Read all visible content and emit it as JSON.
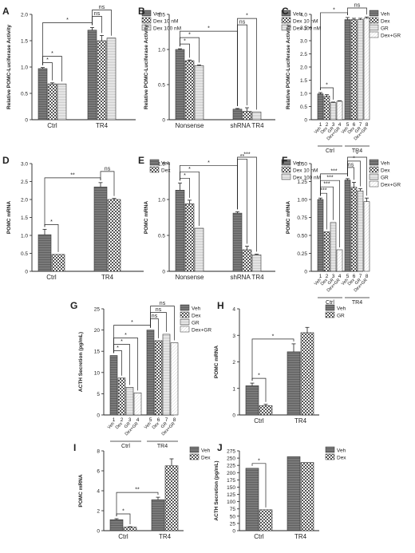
{
  "figure": {
    "title": ""
  },
  "chart_data": [
    {
      "panel": "A",
      "type": "bar",
      "ylabel": "Relative POMC-Luciferase Activity",
      "ylim": [
        0,
        2.0
      ],
      "yticks": [
        0,
        0.5,
        1.0,
        1.5,
        2.0
      ],
      "groups": [
        "Ctrl",
        "TR4"
      ],
      "legend": [
        "Veh",
        "Dex 10 nM",
        "Dex 100 nM"
      ],
      "values": [
        [
          0.97,
          0.68,
          0.68
        ],
        [
          1.7,
          1.5,
          1.55
        ]
      ],
      "errors": [
        [
          0.02,
          0.02,
          0.0
        ],
        [
          0.05,
          0.1,
          0.0
        ]
      ],
      "annotations": [
        {
          "a": [
            0,
            0
          ],
          "b": [
            0,
            1
          ],
          "text": "*"
        },
        {
          "a": [
            0,
            0
          ],
          "b": [
            0,
            2
          ],
          "text": "*"
        },
        {
          "a": [
            0,
            0
          ],
          "b": [
            1,
            0
          ],
          "text": "*"
        },
        {
          "a": [
            1,
            0
          ],
          "b": [
            1,
            1
          ],
          "text": "ns"
        },
        {
          "a": [
            1,
            0
          ],
          "b": [
            1,
            2
          ],
          "text": "ns"
        }
      ]
    },
    {
      "panel": "B",
      "type": "bar",
      "ylabel": "Relative POMC-Luciferase Activity",
      "ylim": [
        0,
        1.5
      ],
      "yticks": [
        0,
        0.5,
        1.0,
        1.5
      ],
      "groups": [
        "Nonsense",
        "shRNA TR4"
      ],
      "legend": [
        "Veh",
        "Dex 10 nM",
        "Dex 100 nM"
      ],
      "values": [
        [
          1.0,
          0.84,
          0.77
        ],
        [
          0.15,
          0.12,
          0.11
        ]
      ],
      "errors": [
        [
          0.01,
          0.01,
          0.01
        ],
        [
          0.01,
          0.05,
          0.0
        ]
      ],
      "annotations": [
        {
          "a": [
            0,
            0
          ],
          "b": [
            0,
            1
          ],
          "text": "*"
        },
        {
          "a": [
            0,
            0
          ],
          "b": [
            0,
            2
          ],
          "text": "*"
        },
        {
          "a": [
            0,
            0
          ],
          "b": [
            1,
            0
          ],
          "text": "*"
        },
        {
          "a": [
            1,
            0
          ],
          "b": [
            1,
            1
          ],
          "text": "ns"
        },
        {
          "a": [
            1,
            0
          ],
          "b": [
            1,
            2
          ],
          "text": "*"
        }
      ]
    },
    {
      "panel": "C",
      "type": "bar",
      "ylabel": "Relative POMC-Luciferase Activity",
      "ylim": [
        0,
        4.0
      ],
      "yticks": [
        0,
        0.5,
        1.0,
        1.5,
        2.0,
        2.5,
        3.0,
        3.5,
        4.0
      ],
      "groups": [
        "Ctrl",
        "TR4"
      ],
      "legend": [
        "Veh",
        "Dex",
        "GR",
        "Dex+GR"
      ],
      "bar_numbers": [
        [
          "1",
          "2",
          "3",
          "4"
        ],
        [
          "5",
          "6",
          "7",
          "8"
        ]
      ],
      "bar_labels": [
        "Veh",
        "Dex",
        "GR",
        "Dex+GR"
      ],
      "values": [
        [
          0.98,
          0.9,
          0.65,
          0.7
        ],
        [
          3.8,
          3.8,
          3.8,
          3.85
        ]
      ],
      "errors": [
        [
          0.05,
          0.05,
          0.02,
          0.02
        ],
        [
          0.08,
          0.05,
          0.05,
          0.05
        ]
      ],
      "annotations": [
        {
          "a": [
            0,
            0
          ],
          "b": [
            0,
            2
          ],
          "text": "*"
        },
        {
          "a": [
            0,
            0
          ],
          "b": [
            1,
            0
          ],
          "text": "*"
        },
        {
          "a": [
            1,
            0
          ],
          "b": [
            1,
            3
          ],
          "text": "ns"
        }
      ]
    },
    {
      "panel": "D",
      "type": "bar",
      "ylabel": "POMC mRNA",
      "ylim": [
        0,
        3.0
      ],
      "yticks": [
        0,
        0.5,
        1.0,
        1.5,
        2.0,
        2.5,
        3.0
      ],
      "groups": [
        "Ctrl",
        "TR4"
      ],
      "legend": [
        "Veh",
        "Dex"
      ],
      "values": [
        [
          1.02,
          0.47
        ],
        [
          2.35,
          2.0
        ]
      ],
      "errors": [
        [
          0.15,
          0.0
        ],
        [
          0.12,
          0.03
        ]
      ],
      "annotations": [
        {
          "a": [
            0,
            0
          ],
          "b": [
            0,
            1
          ],
          "text": "*"
        },
        {
          "a": [
            0,
            0
          ],
          "b": [
            1,
            0
          ],
          "text": "**"
        },
        {
          "a": [
            1,
            0
          ],
          "b": [
            1,
            1
          ],
          "text": "ns"
        }
      ]
    },
    {
      "panel": "E",
      "type": "bar",
      "ylabel": "POMC mRNA",
      "ylim": [
        0,
        1.5
      ],
      "yticks": [
        0,
        0.5,
        1.0,
        1.5
      ],
      "groups": [
        "Nonsense",
        "shRNA TR4"
      ],
      "legend": [
        "Veh",
        "Dex 10 nM",
        "Dex 100 nM"
      ],
      "values": [
        [
          1.13,
          0.94,
          0.6
        ],
        [
          0.81,
          0.3,
          0.23
        ]
      ],
      "errors": [
        [
          0.1,
          0.05,
          0.0
        ],
        [
          0.02,
          0.05,
          0.01
        ]
      ],
      "annotations": [
        {
          "a": [
            0,
            0
          ],
          "b": [
            0,
            1
          ],
          "text": "*"
        },
        {
          "a": [
            0,
            0
          ],
          "b": [
            0,
            2
          ],
          "text": "*"
        },
        {
          "a": [
            0,
            0
          ],
          "b": [
            1,
            0
          ],
          "text": "*"
        },
        {
          "a": [
            1,
            0
          ],
          "b": [
            1,
            1
          ],
          "text": "**"
        },
        {
          "a": [
            1,
            0
          ],
          "b": [
            1,
            2
          ],
          "text": "***"
        }
      ]
    },
    {
      "panel": "F",
      "type": "bar",
      "ylabel": "POMC mRNA",
      "ylim": [
        0,
        1.5
      ],
      "yticks": [
        0,
        0.25,
        0.5,
        0.75,
        1.0,
        1.25,
        1.5
      ],
      "groups": [
        "Ctrl",
        "TR4"
      ],
      "legend": [
        "Veh",
        "Dex",
        "GR",
        "Dex+GR"
      ],
      "bar_numbers": [
        [
          "1",
          "2",
          "3",
          "4"
        ],
        [
          "5",
          "6",
          "7",
          "8"
        ]
      ],
      "bar_labels": [
        "Veh",
        "Dex",
        "GR",
        "Dex+GR"
      ],
      "values": [
        [
          1.0,
          0.55,
          0.68,
          0.3
        ],
        [
          1.27,
          1.17,
          1.12,
          0.97
        ]
      ],
      "errors": [
        [
          0.02,
          0.0,
          0.0,
          0.0
        ],
        [
          0.02,
          0.07,
          0.03,
          0.05
        ]
      ],
      "annotations": [
        {
          "a": [
            0,
            0
          ],
          "b": [
            0,
            1
          ],
          "text": "***"
        },
        {
          "a": [
            0,
            0
          ],
          "b": [
            0,
            2
          ],
          "text": "***"
        },
        {
          "a": [
            0,
            0
          ],
          "b": [
            0,
            3
          ],
          "text": "***"
        },
        {
          "a": [
            0,
            0
          ],
          "b": [
            1,
            0
          ],
          "text": "***"
        },
        {
          "a": [
            1,
            0
          ],
          "b": [
            1,
            1
          ],
          "text": "ns"
        },
        {
          "a": [
            1,
            0
          ],
          "b": [
            1,
            2
          ],
          "text": "*"
        },
        {
          "a": [
            1,
            0
          ],
          "b": [
            1,
            3
          ],
          "text": "*"
        }
      ]
    },
    {
      "panel": "G",
      "type": "bar",
      "ylabel": "ACTH Secretion (pg/mL)",
      "ylim": [
        0,
        25
      ],
      "yticks": [
        0,
        5,
        10,
        15,
        20,
        25
      ],
      "groups": [
        "Ctrl",
        "TR4"
      ],
      "legend": [
        "Veh",
        "Dex",
        "GR",
        "Dex+GR"
      ],
      "bar_numbers": [
        [
          "1",
          "2",
          "3",
          "4"
        ],
        [
          "5",
          "6",
          "7",
          "8"
        ]
      ],
      "bar_labels": [
        "Veh",
        "Dex",
        "GR",
        "Dex+GR"
      ],
      "values": [
        [
          14.0,
          8.7,
          6.5,
          5.2
        ],
        [
          20.0,
          17.5,
          19.0,
          17.0
        ]
      ],
      "errors": [
        [
          0,
          0,
          0,
          0
        ],
        [
          0,
          0,
          0,
          0
        ]
      ],
      "annotations": [
        {
          "a": [
            0,
            0
          ],
          "b": [
            0,
            1
          ],
          "text": "*"
        },
        {
          "a": [
            0,
            0
          ],
          "b": [
            0,
            2
          ],
          "text": "*"
        },
        {
          "a": [
            0,
            0
          ],
          "b": [
            0,
            3
          ],
          "text": "*"
        },
        {
          "a": [
            0,
            0
          ],
          "b": [
            1,
            0
          ],
          "text": "*"
        },
        {
          "a": [
            1,
            0
          ],
          "b": [
            1,
            1
          ],
          "text": "ns"
        },
        {
          "a": [
            1,
            0
          ],
          "b": [
            1,
            2
          ],
          "text": "ns"
        },
        {
          "a": [
            1,
            0
          ],
          "b": [
            1,
            3
          ],
          "text": "ns"
        }
      ]
    },
    {
      "panel": "H",
      "type": "bar",
      "ylabel": "POMC mRNA",
      "ylim": [
        0,
        4
      ],
      "yticks": [
        0,
        1,
        2,
        3,
        4
      ],
      "groups": [
        "Ctrl",
        "TR4"
      ],
      "legend": [
        "Veh",
        "GR"
      ],
      "values": [
        [
          1.1,
          0.35
        ],
        [
          2.38,
          3.1
        ]
      ],
      "errors": [
        [
          0.1,
          0.05
        ],
        [
          0.3,
          0.2
        ]
      ],
      "annotations": [
        {
          "a": [
            0,
            0
          ],
          "b": [
            0,
            1
          ],
          "text": "*"
        },
        {
          "a": [
            0,
            0
          ],
          "b": [
            1,
            0
          ],
          "text": "*"
        }
      ]
    },
    {
      "panel": "I",
      "type": "bar",
      "ylabel": "POMC mRNA",
      "ylim": [
        0,
        8
      ],
      "yticks": [
        0,
        2,
        4,
        6,
        8
      ],
      "groups": [
        "Ctrl",
        "TR4"
      ],
      "legend": [
        "Veh",
        "Dex"
      ],
      "values": [
        [
          1.1,
          0.35
        ],
        [
          3.1,
          6.5
        ]
      ],
      "errors": [
        [
          0.1,
          0.05
        ],
        [
          0.25,
          0.7
        ]
      ],
      "annotations": [
        {
          "a": [
            0,
            0
          ],
          "b": [
            0,
            1
          ],
          "text": "*"
        },
        {
          "a": [
            0,
            0
          ],
          "b": [
            1,
            0
          ],
          "text": "**"
        }
      ]
    },
    {
      "panel": "J",
      "type": "bar",
      "ylabel": "ACTH Secretion (pg/mL)",
      "ylim": [
        0,
        275
      ],
      "yticks": [
        0,
        25,
        50,
        75,
        100,
        125,
        150,
        175,
        200,
        225,
        250,
        275
      ],
      "groups": [
        "Ctrl",
        "TR4"
      ],
      "legend": [
        "Veh",
        "Dex"
      ],
      "values": [
        [
          215,
          72
        ],
        [
          255,
          235
        ]
      ],
      "errors": [
        [
          0,
          0
        ],
        [
          0,
          0
        ]
      ],
      "annotations": [
        {
          "a": [
            0,
            0
          ],
          "b": [
            0,
            1
          ],
          "text": "*"
        }
      ]
    }
  ]
}
